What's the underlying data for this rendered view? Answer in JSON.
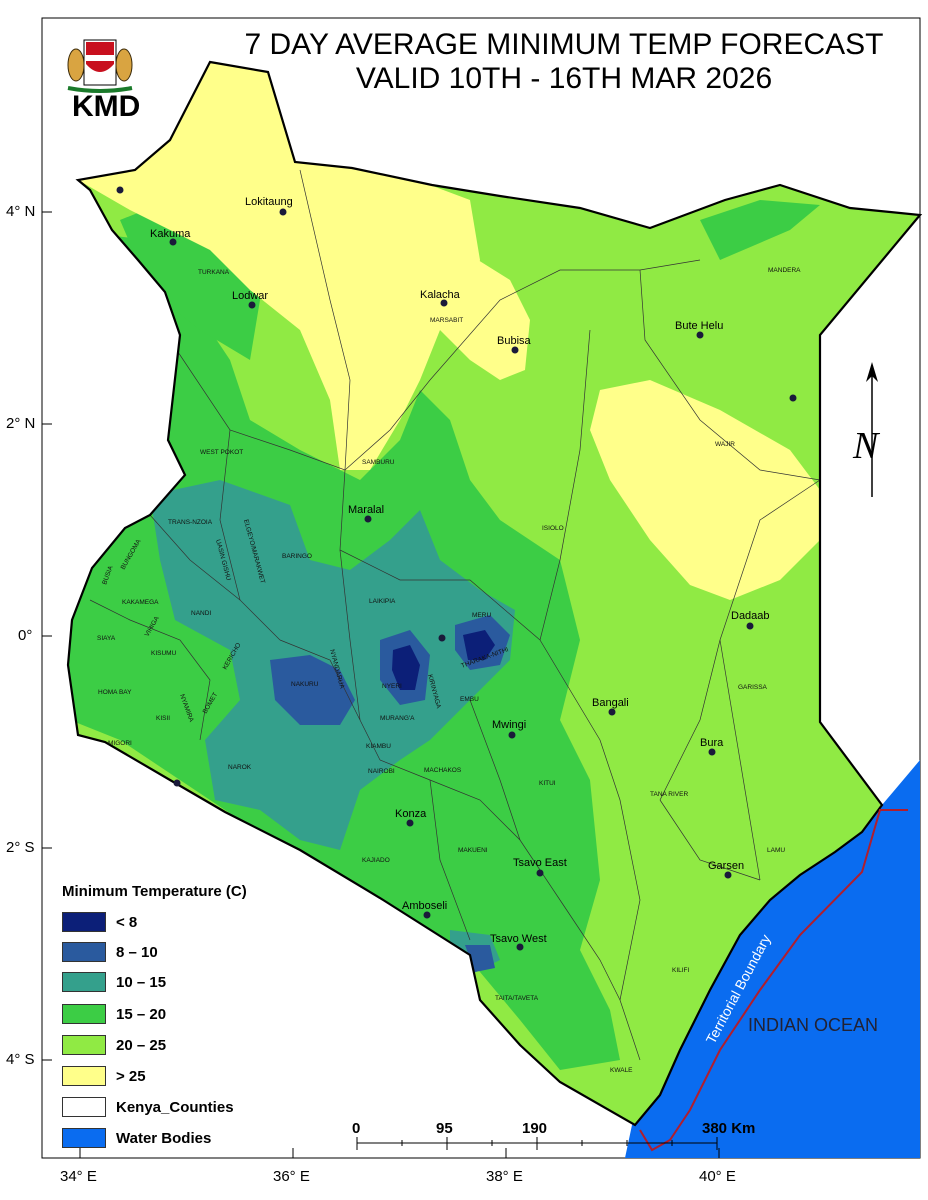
{
  "title": {
    "line1": "7 DAY AVERAGE MINIMUM TEMP FORECAST",
    "line2": "VALID 10TH - 16TH MAR 2026"
  },
  "logo": {
    "text": "KMD",
    "icon": "coat-of-arms-emblem"
  },
  "axes": {
    "lat_labels": [
      "4° N",
      "2° N",
      "0°",
      "2° S",
      "4° S"
    ],
    "lon_labels": [
      "34° E",
      "36° E",
      "38° E",
      "40° E"
    ]
  },
  "cities": [
    "Lokitaung",
    "Kakuma",
    "Lodwar",
    "Kalacha",
    "Bubisa",
    "Bute Helu",
    "Maralal",
    "Dadaab",
    "Bangali",
    "Mwingi",
    "Bura",
    "Konza",
    "Tsavo East",
    "Garsen",
    "Amboseli",
    "Tsavo West"
  ],
  "counties": [
    "TURKANA",
    "MARSABIT",
    "MANDERA",
    "WAJIR",
    "WEST POKOT",
    "SAMBURU",
    "ISIOLO",
    "TRANS-NZOIA",
    "ELGEYO/MARAKWET",
    "BARINGO",
    "UASIN GISHU",
    "BUNGOMA",
    "BUSIA",
    "KAKAMEGA",
    "NANDI",
    "LAIKIPIA",
    "MERU",
    "SIAYA",
    "VIHIGA",
    "KISUMU",
    "KERICHO",
    "NYANDARUA",
    "NYERI",
    "THARAKA-NITHI",
    "HOMA BAY",
    "NAKURU",
    "KIRINYAGA",
    "EMBU",
    "GARISSA",
    "NYAMIRA",
    "KISII",
    "BOMET",
    "MURANG'A",
    "MIGORI",
    "KIAMBU",
    "NAROK",
    "NAIROBI",
    "MACHAKOS",
    "KITUI",
    "TANA RIVER",
    "LAMU",
    "MAKUENI",
    "KAJIADO",
    "KILIFI",
    "TAITA/TAVETA",
    "KWALE"
  ],
  "compass": {
    "label": "N",
    "icon": "north-arrow-icon"
  },
  "ocean": {
    "label": "INDIAN OCEAN"
  },
  "boundary": {
    "label": "Territorial Boundary"
  },
  "legend": {
    "title": "Minimum Temperature (C)",
    "items": [
      {
        "label": "< 8",
        "color": "#0c1f78"
      },
      {
        "label": "8 – 10",
        "color": "#2a5a9e"
      },
      {
        "label": "10 – 15",
        "color": "#34a08c"
      },
      {
        "label": "15 – 20",
        "color": "#3ccd45"
      },
      {
        "label": "20 – 25",
        "color": "#90ea44"
      },
      {
        "label": "> 25",
        "color": "#ffff8a"
      },
      {
        "label": "Kenya_Counties",
        "color": "#ffffff"
      },
      {
        "label": "Water Bodies",
        "color": "#0a6cf0"
      }
    ]
  },
  "scalebar": {
    "labels": [
      "0",
      "95",
      "190",
      "380 Km"
    ]
  }
}
